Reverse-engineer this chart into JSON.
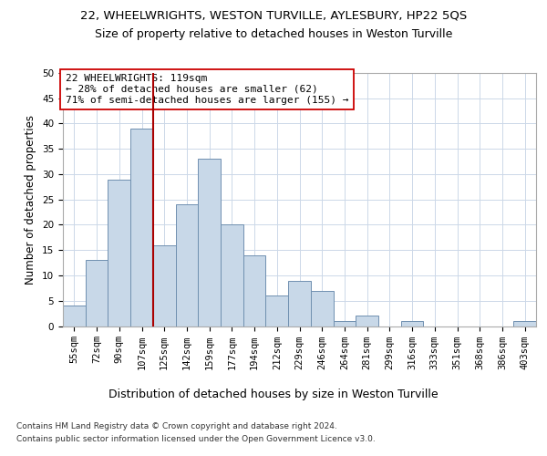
{
  "title1": "22, WHEELWRIGHTS, WESTON TURVILLE, AYLESBURY, HP22 5QS",
  "title2": "Size of property relative to detached houses in Weston Turville",
  "xlabel": "Distribution of detached houses by size in Weston Turville",
  "ylabel": "Number of detached properties",
  "categories": [
    "55sqm",
    "72sqm",
    "90sqm",
    "107sqm",
    "125sqm",
    "142sqm",
    "159sqm",
    "177sqm",
    "194sqm",
    "212sqm",
    "229sqm",
    "246sqm",
    "264sqm",
    "281sqm",
    "299sqm",
    "316sqm",
    "333sqm",
    "351sqm",
    "368sqm",
    "386sqm",
    "403sqm"
  ],
  "bar_heights": [
    4,
    13,
    29,
    39,
    16,
    24,
    33,
    20,
    14,
    6,
    9,
    7,
    1,
    2,
    0,
    1,
    0,
    0,
    0,
    0,
    1
  ],
  "bar_color": "#c8d8e8",
  "bar_edge_color": "#7090b0",
  "vline_x_index": 3.5,
  "vline_color": "#aa0000",
  "annotation_text": "22 WHEELWRIGHTS: 119sqm\n← 28% of detached houses are smaller (62)\n71% of semi-detached houses are larger (155) →",
  "annotation_box_color": "#ffffff",
  "annotation_box_edge_color": "#cc0000",
  "ylim": [
    0,
    50
  ],
  "yticks": [
    0,
    5,
    10,
    15,
    20,
    25,
    30,
    35,
    40,
    45,
    50
  ],
  "footer_line1": "Contains HM Land Registry data © Crown copyright and database right 2024.",
  "footer_line2": "Contains public sector information licensed under the Open Government Licence v3.0.",
  "bg_color": "#ffffff",
  "grid_color": "#ccd8e8",
  "title1_fontsize": 9.5,
  "title2_fontsize": 9.0,
  "ylabel_fontsize": 8.5,
  "xlabel_fontsize": 9.0,
  "tick_fontsize": 7.5,
  "annot_fontsize": 8.0,
  "footer_fontsize": 6.5
}
